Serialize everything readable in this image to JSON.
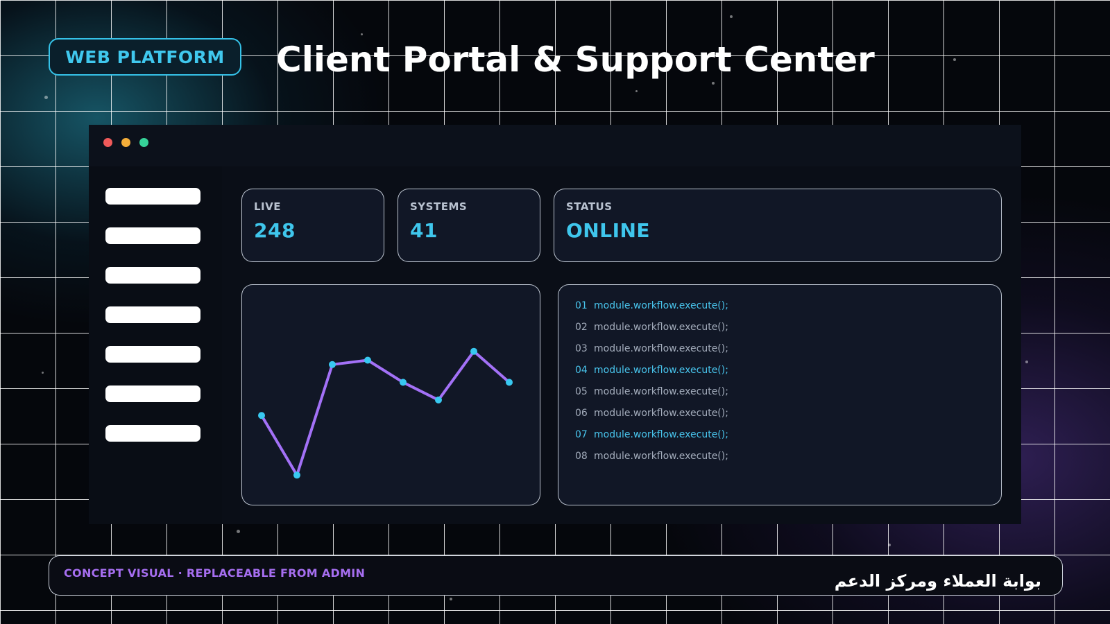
{
  "header": {
    "badge": "WEB PLATFORM",
    "title": "Client Portal & Support Center"
  },
  "window": {
    "controls": [
      "close-dot",
      "minimize-dot",
      "maximize-dot"
    ],
    "control_colors": [
      "#f05a5a",
      "#f4ae3a",
      "#36d399"
    ],
    "sidebar_item_count": 7
  },
  "stats": [
    {
      "label": "LIVE",
      "value": "248"
    },
    {
      "label": "SYSTEMS",
      "value": "41"
    },
    {
      "label": "STATUS",
      "value": "ONLINE"
    }
  ],
  "chart_data": {
    "type": "line",
    "title": "",
    "xlabel": "",
    "ylabel": "",
    "x": [
      1,
      2,
      3,
      4,
      5,
      6,
      7,
      8
    ],
    "series": [
      {
        "values": [
          41,
          14,
          64,
          66,
          56,
          48,
          70,
          56
        ]
      }
    ],
    "ylim": [
      0,
      100
    ],
    "grid": false,
    "line_color": "#a371f7",
    "marker_color": "#38c8f0"
  },
  "code": {
    "lines": [
      {
        "num": "01",
        "text": "module.workflow.execute();",
        "highlighted": true
      },
      {
        "num": "02",
        "text": "module.workflow.execute();",
        "highlighted": false
      },
      {
        "num": "03",
        "text": "module.workflow.execute();",
        "highlighted": false
      },
      {
        "num": "04",
        "text": "module.workflow.execute();",
        "highlighted": true
      },
      {
        "num": "05",
        "text": "module.workflow.execute();",
        "highlighted": false
      },
      {
        "num": "06",
        "text": "module.workflow.execute();",
        "highlighted": false
      },
      {
        "num": "07",
        "text": "module.workflow.execute();",
        "highlighted": true
      },
      {
        "num": "08",
        "text": "module.workflow.execute();",
        "highlighted": false
      }
    ]
  },
  "footer": {
    "left": "CONCEPT VISUAL · REPLACEABLE FROM ADMIN",
    "right": "بوابة العملاء ومركز الدعم"
  },
  "colors": {
    "accent_cyan": "#3fc6ec",
    "accent_purple": "#a66ef0",
    "panel_bg": "#111726",
    "window_bg": "#0b0f18"
  }
}
